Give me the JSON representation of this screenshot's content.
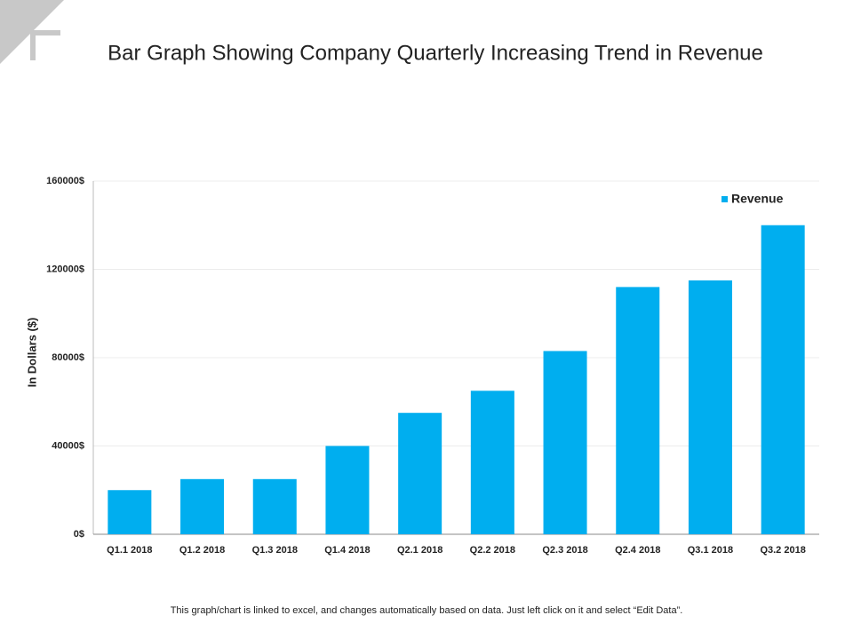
{
  "chart_data": {
    "type": "bar",
    "title": "Bar Graph Showing Company Quarterly Increasing Trend in Revenue",
    "y_label": "In Dollars ($)",
    "categories": [
      "Q1.1 2018",
      "Q1.2 2018",
      "Q1.3 2018",
      "Q1.4 2018",
      "Q2.1 2018",
      "Q2.2 2018",
      "Q2.3 2018",
      "Q2.4 2018",
      "Q3.1 2018",
      "Q3.2 2018"
    ],
    "series": [
      {
        "name": "Revenue",
        "color": "#00aeef",
        "values": [
          20000,
          25000,
          25000,
          40000,
          55000,
          65000,
          83000,
          112000,
          115000,
          140000
        ]
      }
    ],
    "ylim": [
      0,
      160000
    ],
    "yticks": [
      {
        "value": 0,
        "label": "0$"
      },
      {
        "value": 40000,
        "label": "40000$"
      },
      {
        "value": 80000,
        "label": "80000$"
      },
      {
        "value": 120000,
        "label": "120000$"
      },
      {
        "value": 160000,
        "label": "160000$"
      }
    ],
    "grid": true,
    "legend": "top-right",
    "footnote": "This graph/chart is linked to excel, and changes automatically based on data. Just left click on it and select “Edit Data”."
  }
}
